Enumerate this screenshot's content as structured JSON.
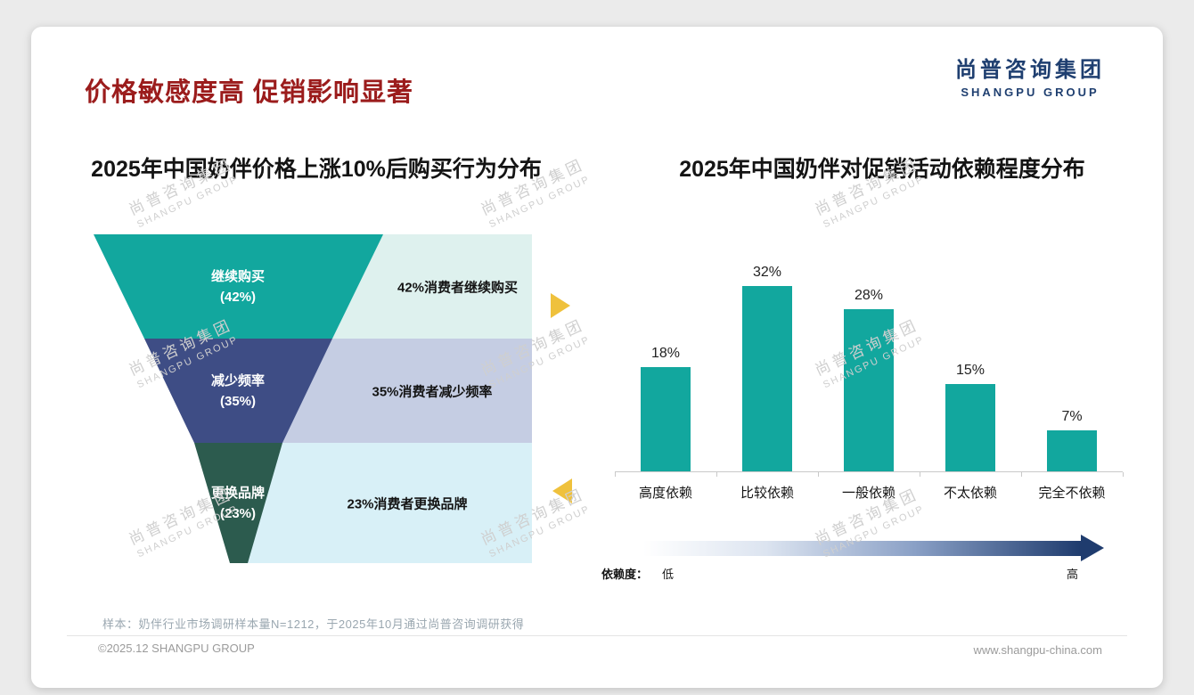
{
  "slide": {
    "title": "价格敏感度高 促销影响显著",
    "logo_cn": "尚普咨询集团",
    "logo_en": "SHANGPU GROUP",
    "watermark_cn": "尚普咨询集团",
    "watermark_en": "SHANGPU GROUP",
    "footnote": "样本：奶伴行业市场调研样本量N=1212，于2025年10月通过尚普咨询调研获得",
    "footer_left": "©2025.12 SHANGPU GROUP",
    "footer_right": "www.shangpu-china.com"
  },
  "colors": {
    "title_red": "#9b1c1c",
    "logo_navy": "#1f3f70",
    "teal": "#12a79e",
    "funnel_navy": "#3e4d85",
    "funnel_green": "#2c5b4e",
    "band_mint": "#def1ee",
    "band_periwinkle": "#c5cde3",
    "band_cyan": "#d8f0f7",
    "gold": "#efc13c",
    "arrow_navy": "#1f3c6e",
    "axis_gray": "#c9c9c9",
    "watermark_gray": "#cfcfcf",
    "footnote_gray": "#9aa7b0",
    "footer_gray": "#9b9b9b"
  },
  "funnel_chart": {
    "title": "2025年中国奶伴价格上涨10%后购买行为分布",
    "levels": [
      {
        "label": "继续购买",
        "value_label": "(42%)",
        "desc": "42%消费者继续购买",
        "fill": "#12a79e",
        "band": "#def1ee"
      },
      {
        "label": "减少频率",
        "value_label": "(35%)",
        "desc": "35%消费者减少频率",
        "fill": "#3e4d85",
        "band": "#c5cde3"
      },
      {
        "label": "更换品牌",
        "value_label": "(23%)",
        "desc": "23%消费者更换品牌",
        "fill": "#2c5b4e",
        "band": "#d8f0f7"
      }
    ]
  },
  "bar_chart": {
    "title": "2025年中国奶伴对促销活动依赖程度分布",
    "bar_color": "#12a79e",
    "bars": [
      {
        "category": "高度依赖",
        "value": 18,
        "label": "18%"
      },
      {
        "category": "比较依赖",
        "value": 32,
        "label": "32%"
      },
      {
        "category": "一般依赖",
        "value": 28,
        "label": "28%"
      },
      {
        "category": "不太依赖",
        "value": 15,
        "label": "15%"
      },
      {
        "category": "完全不依赖",
        "value": 7,
        "label": "7%"
      }
    ],
    "legend": {
      "axis_label": "依赖度：",
      "low": "低",
      "high": "高"
    }
  },
  "chart_data": [
    {
      "type": "funnel",
      "title": "2025年中国奶伴价格上涨10%后购买行为分布",
      "categories": [
        "继续购买",
        "减少频率",
        "更换品牌"
      ],
      "values": [
        42,
        35,
        23
      ],
      "unit": "%",
      "annotations": [
        "42%消费者继续购买",
        "35%消费者减少频率",
        "23%消费者更换品牌"
      ]
    },
    {
      "type": "bar",
      "title": "2025年中国奶伴对促销活动依赖程度分布",
      "categories": [
        "高度依赖",
        "比较依赖",
        "一般依赖",
        "不太依赖",
        "完全不依赖"
      ],
      "values": [
        18,
        32,
        28,
        15,
        7
      ],
      "unit": "%",
      "data_labels": [
        "18%",
        "32%",
        "28%",
        "15%",
        "7%"
      ],
      "ylim": [
        0,
        35
      ],
      "grid": false,
      "legend_note": "依赖度：低 → 高"
    }
  ]
}
